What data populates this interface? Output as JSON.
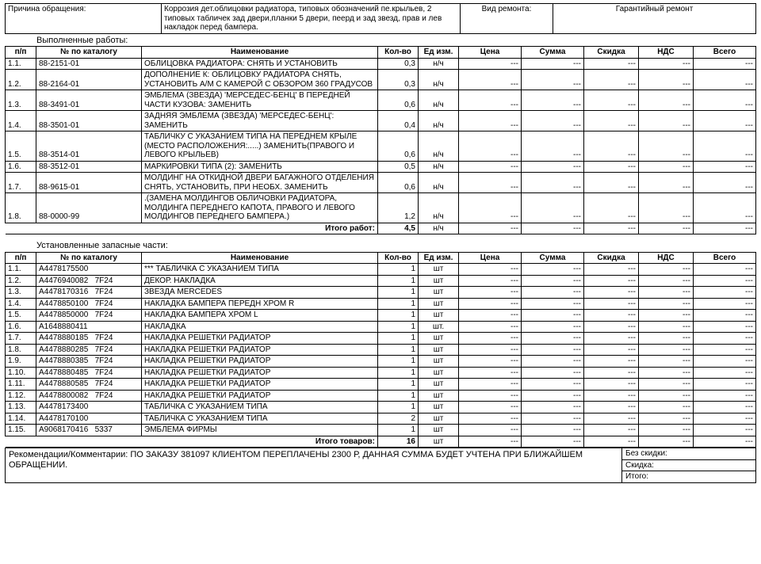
{
  "header": {
    "reason_label": "Причина обращения:",
    "reason_text": "Коррозия  дет.облицовки радиатора, типовых обозначений пе.крыльев, 2 типовых табличек зад двери,планки 5 двери, пеерд и зад звезд, прав и лев накладок перед бампера.",
    "repair_type_label": "Вид ремонта:",
    "repair_type_value": "Гарантийный ремонт"
  },
  "works": {
    "section": "Выполненные работы:",
    "cols": [
      "п/п",
      "№ по каталогу",
      "Наименование",
      "Кол-во",
      "Ед изм.",
      "Цена",
      "Сумма",
      "Скидка",
      "НДС",
      "Всего"
    ],
    "rows": [
      {
        "pp": "1.1.",
        "cat": "88-2151-01",
        "name": "ОБЛИЦОВКА РАДИАТОРА: СНЯТЬ И УСТАНОВИТЬ",
        "qty": "0,3",
        "unit": "н/ч"
      },
      {
        "pp": "1.2.",
        "cat": "88-2164-01",
        "name": "ДОПОЛНЕНИЕ К: ОБЛИЦОВКУ РАДИАТОРА СНЯТЬ, УСТАНОВИТЬ А/М С КАМЕРОЙ С ОБЗОРОМ 360 ГРАДУСОВ",
        "qty": "0,3",
        "unit": "н/ч"
      },
      {
        "pp": "1.3.",
        "cat": "88-3491-01",
        "name": "ЭМБЛЕМА (ЗВЕЗДА) 'МЕРСЕДЕС-БЕНЦ' В ПЕРЕДНЕЙ ЧАСТИ КУЗОВА: ЗАМЕНИТЬ",
        "qty": "0,6",
        "unit": "н/ч"
      },
      {
        "pp": "1.4.",
        "cat": "88-3501-01",
        "name": "ЗАДНЯЯ ЭМБЛЕМА (ЗВЕЗДА) 'МЕРСЕДЕС-БЕНЦ': ЗАМЕНИТЬ",
        "qty": "0,4",
        "unit": "н/ч"
      },
      {
        "pp": "1.5.",
        "cat": "88-3514-01",
        "name": "ТАБЛИЧКУ С УКАЗАНИЕМ ТИПА НА ПЕРЕДНЕМ КРЫЛЕ (МЕСТО РАСПОЛОЖЕНИЯ:.....) ЗАМЕНИТЬ(ПРАВОГО И ЛЕВОГО КРЫЛЬЕВ)",
        "qty": "0,6",
        "unit": "н/ч"
      },
      {
        "pp": "1.6.",
        "cat": "88-3512-01",
        "name": "МАРКИРОВКИ ТИПА (2): ЗАМЕНИТЬ",
        "qty": "0,5",
        "unit": "н/ч"
      },
      {
        "pp": "1.7.",
        "cat": "88-9615-01",
        "name": "МОЛДИНГ НА ОТКИДНОЙ ДВЕРИ БАГАЖНОГО ОТДЕЛЕНИЯ СНЯТЬ, УСТАНОВИТЬ, ПРИ НЕОБХ. ЗАМЕНИТЬ",
        "qty": "0,6",
        "unit": "н/ч"
      },
      {
        "pp": "1.8.",
        "cat": "88-0000-99",
        "name": ".(ЗАМЕНА МОЛДИНГОВ  ОБЛИЧОВКИ РАДИАТОРА, МОЛДИНГА ПЕРЕДНЕГО КАПОТА, ПРАВОГО И ЛЕВОГО МОЛДИНГОВ ПЕРЕДНЕГО БАМПЕРА.)",
        "qty": "1,2",
        "unit": "н/ч"
      }
    ],
    "total_label": "Итого работ:",
    "total_qty": "4,5",
    "total_unit": "н/ч"
  },
  "parts": {
    "section": "Установленные запасные части:",
    "cols": [
      "п/п",
      "№ по каталогу",
      "Наименование",
      "Кол-во",
      "Ед изм.",
      "Цена",
      "Сумма",
      "Скидка",
      "НДС",
      "Всего"
    ],
    "rows": [
      {
        "pp": "1.1.",
        "cat": "A4478175500",
        "name": "*** ТАБЛИЧКА С УКАЗАНИЕМ ТИПА",
        "qty": "1",
        "unit": "шт"
      },
      {
        "pp": "1.2.",
        "cat": "A4476940082   7F24",
        "name": "ДЕКОР. НАКЛАДКА",
        "qty": "1",
        "unit": "шт"
      },
      {
        "pp": "1.3.",
        "cat": "A4478170316   7F24",
        "name": "ЗВЕЗДА MERCEDES",
        "qty": "1",
        "unit": "шт"
      },
      {
        "pp": "1.4.",
        "cat": "A4478850100   7F24",
        "name": "НАКЛАДКА БАМПЕРА ПЕРЕДН ХРОМ R",
        "qty": "1",
        "unit": "шт"
      },
      {
        "pp": "1.5.",
        "cat": "A4478850000   7F24",
        "name": "НАКЛАДКА БАМПЕРА ХРОМ L",
        "qty": "1",
        "unit": "шт"
      },
      {
        "pp": "1.6.",
        "cat": "A1648880411",
        "name": "НАКЛАДКА",
        "qty": "1",
        "unit": "шт."
      },
      {
        "pp": "1.7.",
        "cat": "A4478880185   7F24",
        "name": "НАКЛАДКА РЕШЕТКИ РАДИАТОР",
        "qty": "1",
        "unit": "шт"
      },
      {
        "pp": "1.8.",
        "cat": "A4478880285   7F24",
        "name": "НАКЛАДКА РЕШЕТКИ РАДИАТОР",
        "qty": "1",
        "unit": "шт"
      },
      {
        "pp": "1.9.",
        "cat": "A4478880385   7F24",
        "name": "НАКЛАДКА РЕШЕТКИ РАДИАТОР",
        "qty": "1",
        "unit": "шт"
      },
      {
        "pp": "1.10.",
        "cat": "A4478880485   7F24",
        "name": "НАКЛАДКА РЕШЕТКИ РАДИАТОР",
        "qty": "1",
        "unit": "шт"
      },
      {
        "pp": "1.11.",
        "cat": "A4478880585   7F24",
        "name": "НАКЛАДКА РЕШЕТКИ РАДИАТОР",
        "qty": "1",
        "unit": "шт"
      },
      {
        "pp": "1.12.",
        "cat": "A4478800082   7F24",
        "name": "НАКЛАДКА РЕШЕТКИ РАДИАТОР",
        "qty": "1",
        "unit": "шт"
      },
      {
        "pp": "1.13.",
        "cat": "A4478173400",
        "name": "ТАБЛИЧКА С УКАЗАНИЕМ ТИПА",
        "qty": "1",
        "unit": "шт"
      },
      {
        "pp": "1.14.",
        "cat": "A4478170100",
        "name": "ТАБЛИЧКА С УКАЗАНИЕМ ТИПА",
        "qty": "2",
        "unit": "шт"
      },
      {
        "pp": "1.15.",
        "cat": "A9068170416   5337",
        "name": "ЭМБЛЕМА ФИРМЫ",
        "qty": "1",
        "unit": "шт"
      }
    ],
    "total_label": "Итого товаров:",
    "total_qty": "16",
    "total_unit": "шт"
  },
  "footer": {
    "rec_text": "Рекомендации/Комментарии: ПО  ЗАКАЗУ 381097   КЛИЕНТОМ ПЕРЕПЛАЧЕНЫ  2300 Р, ДАННАЯ  СУММА  БУДЕТ УЧТЕНА  ПРИ  БЛИЖАЙШЕМ  ОБРАЩЕНИИ.",
    "no_discount": "Без скидки:",
    "discount": "Скидка:",
    "total": "Итого:"
  },
  "dash": "---"
}
